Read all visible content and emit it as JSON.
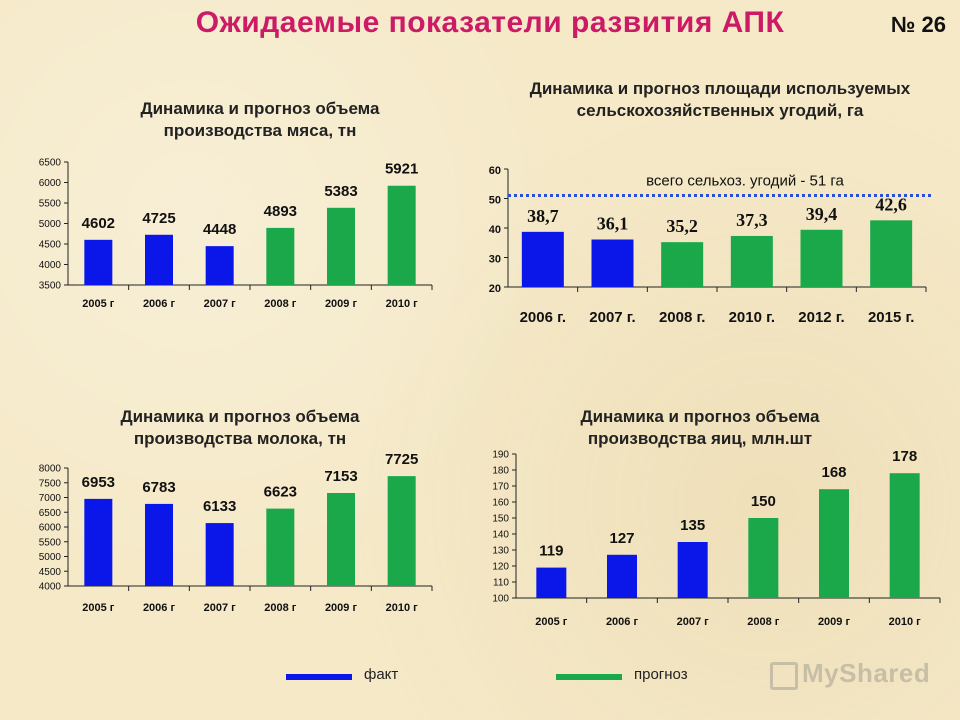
{
  "page": {
    "title": "Ожидаемые показатели развития АПК",
    "slide_number": "№ 26"
  },
  "colors": {
    "fact": "#0b17e8",
    "forecast": "#1aa84a",
    "title": "#cc1a66",
    "dotted_line": "#2a4fd6"
  },
  "chart_data": [
    {
      "type": "bar",
      "title": "Динамика и прогноз объема производства мяса, тн",
      "categories": [
        "2005 г",
        "2006 г",
        "2007 г",
        "2008 г",
        "2009 г",
        "2010 г"
      ],
      "values": [
        4602,
        4725,
        4448,
        4893,
        5383,
        5921
      ],
      "value_labels": [
        "4602",
        "4725",
        "4448",
        "4893",
        "5383",
        "5921"
      ],
      "kinds": [
        "fact",
        "fact",
        "fact",
        "forecast",
        "forecast",
        "forecast"
      ],
      "ylim": [
        3500,
        6500
      ],
      "yticks": [
        3500,
        4000,
        4500,
        5000,
        5500,
        6000,
        6500
      ],
      "grid": false
    },
    {
      "type": "bar",
      "title": "Динамика и прогноз площади используемых сельскохозяйственных угодий, га",
      "categories": [
        "2006 г.",
        "2007 г.",
        "2008 г.",
        "2010 г.",
        "2012 г.",
        "2015 г."
      ],
      "values": [
        38.7,
        36.1,
        35.2,
        37.3,
        39.4,
        42.6
      ],
      "value_labels": [
        "38,7",
        "36,1",
        "35,2",
        "37,3",
        "39,4",
        "42,6"
      ],
      "kinds": [
        "fact",
        "fact",
        "forecast",
        "forecast",
        "forecast",
        "forecast"
      ],
      "ylim": [
        20,
        60
      ],
      "yticks": [
        20,
        30,
        40,
        50,
        60
      ],
      "reference_line": {
        "value": 51,
        "label": "всего сельхоз. угодий - 51 га"
      },
      "grid": false
    },
    {
      "type": "bar",
      "title": "Динамика и прогноз объема производства молока, тн",
      "categories": [
        "2005 г",
        "2006 г",
        "2007 г",
        "2008 г",
        "2009 г",
        "2010 г"
      ],
      "values": [
        6953,
        6783,
        6133,
        6623,
        7153,
        7725
      ],
      "value_labels": [
        "6953",
        "6783",
        "6133",
        "6623",
        "7153",
        "7725"
      ],
      "kinds": [
        "fact",
        "fact",
        "fact",
        "forecast",
        "forecast",
        "forecast"
      ],
      "ylim": [
        4000,
        8000
      ],
      "yticks": [
        4000,
        4500,
        5000,
        5500,
        6000,
        6500,
        7000,
        7500,
        8000
      ],
      "grid": false
    },
    {
      "type": "bar",
      "title": "Динамика и прогноз объема производства яиц, млн.шт",
      "categories": [
        "2005 г",
        "2006 г",
        "2007 г",
        "2008 г",
        "2009 г",
        "2010 г"
      ],
      "values": [
        119,
        127,
        135,
        150,
        168,
        178
      ],
      "value_labels": [
        "119",
        "127",
        "135",
        "150",
        "168",
        "178"
      ],
      "kinds": [
        "fact",
        "fact",
        "fact",
        "forecast",
        "forecast",
        "forecast"
      ],
      "ylim": [
        100,
        190
      ],
      "yticks": [
        100,
        110,
        120,
        130,
        140,
        150,
        160,
        170,
        180,
        190
      ],
      "grid": false
    }
  ],
  "legend": {
    "fact": "факт",
    "forecast": "прогноз",
    "placement": "bottom"
  },
  "watermark": "MyShared"
}
